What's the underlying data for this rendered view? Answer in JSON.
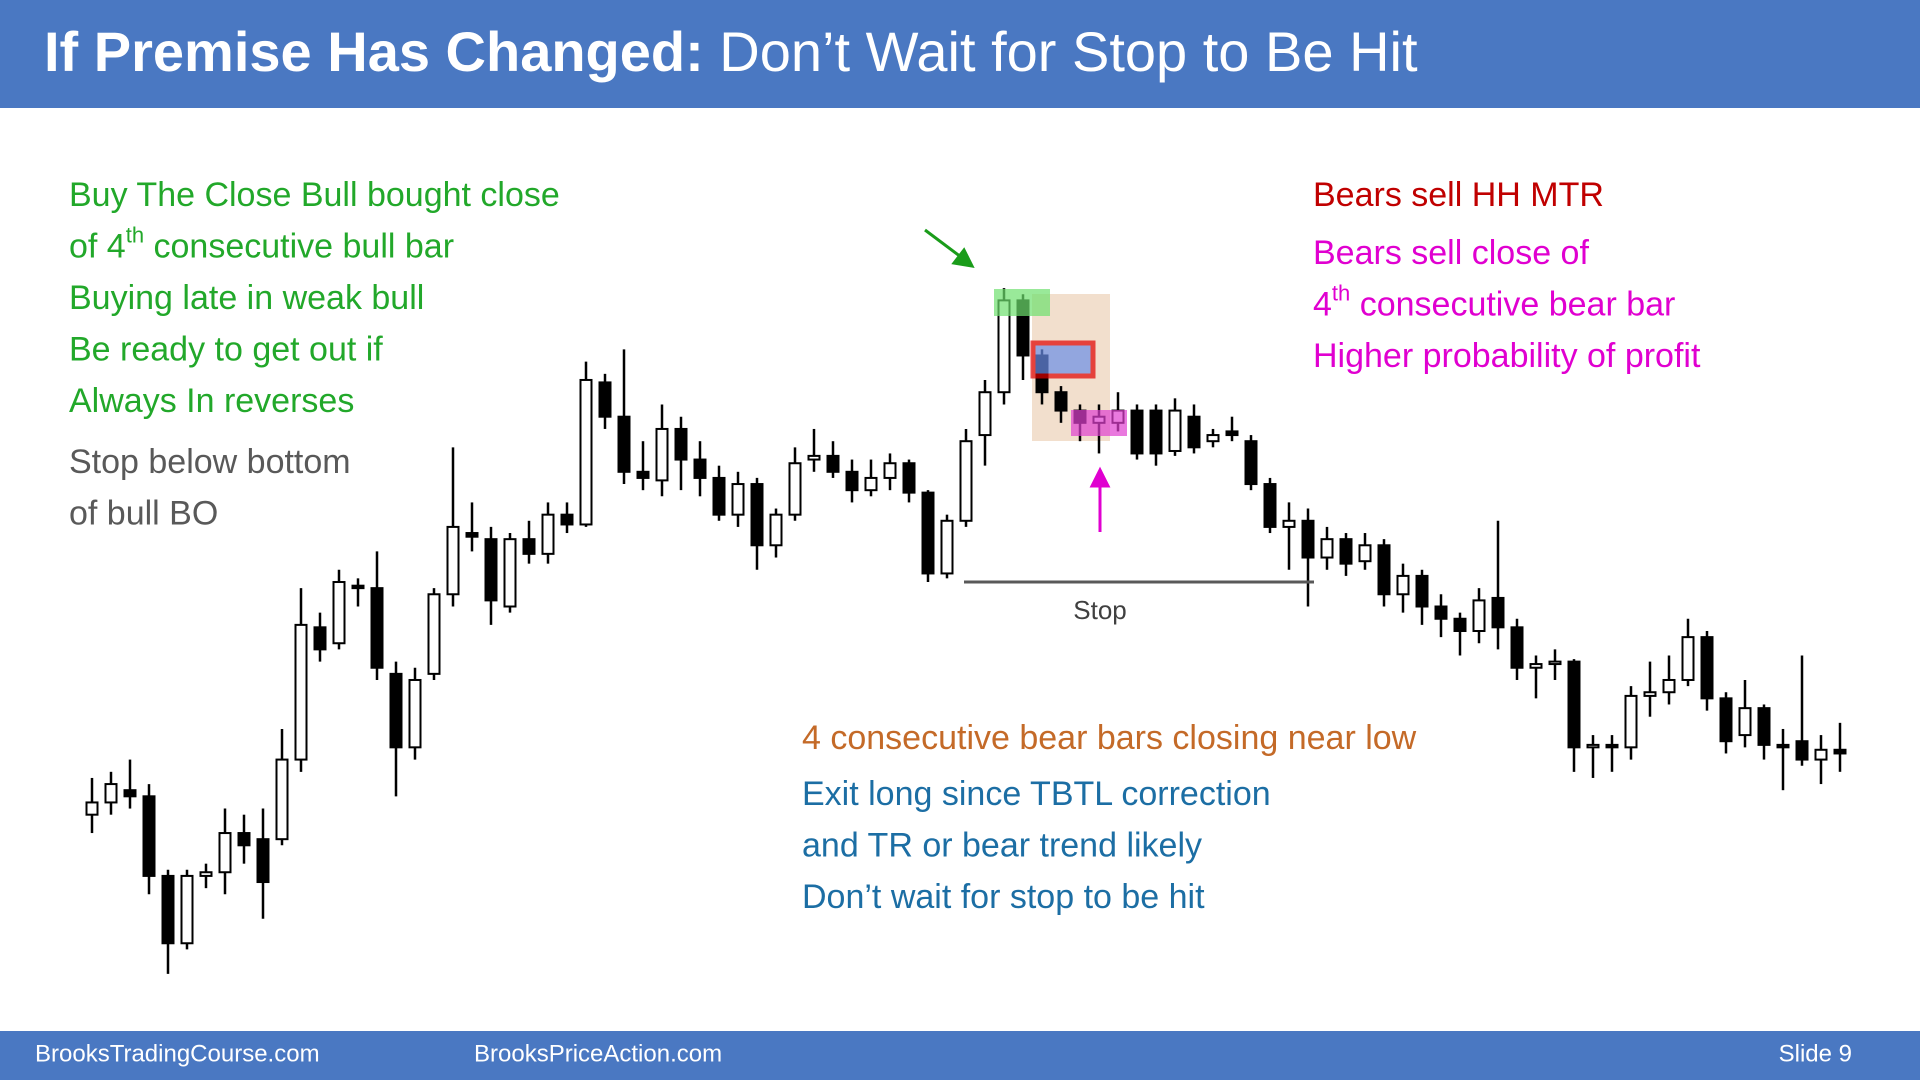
{
  "title": {
    "bold": "If Premise Has Changed:",
    "rest": " Don’t Wait for Stop to Be Hit"
  },
  "notes": {
    "left": [
      "Buy The Close Bull bought close",
      {
        "pre": "of 4",
        "sup": "th",
        "post": " consecutive bull bar"
      },
      "Buying late in weak bull",
      "Be ready to get out if",
      "Always In reverses"
    ],
    "stop_note": [
      "Stop below bottom",
      "of bull BO"
    ],
    "bears_red": "Bears sell HH MTR",
    "bears_magenta": [
      "Bears sell close of",
      {
        "pre": "4",
        "sup": "th",
        "post": " consecutive bear bar"
      },
      "Higher probability of profit"
    ],
    "bear_bars": "4 consecutive bear bars closing near low",
    "exit": [
      "Exit long since TBTL correction",
      "and TR or bear trend likely",
      "Don’t wait for stop to be hit"
    ]
  },
  "footer": {
    "left": "BrooksTradingCourse.com",
    "middle": "BrooksPriceAction.com",
    "slide": "Slide  9"
  },
  "chart_data": {
    "type": "candlestick",
    "ylim": [
      0,
      570
    ],
    "stop": {
      "label": "Stop",
      "value": 325
    },
    "open": [
      135,
      145,
      155,
      150,
      85,
      30,
      85,
      88,
      120,
      115,
      115,
      180,
      288,
      275,
      322,
      320,
      250,
      190,
      250,
      315,
      365,
      360,
      305,
      360,
      348,
      380,
      372,
      488,
      460,
      415,
      408,
      450,
      425,
      410,
      380,
      405,
      355,
      380,
      425,
      428,
      415,
      400,
      410,
      422,
      398,
      332,
      375,
      445,
      480,
      555,
      510,
      480,
      465,
      455,
      455,
      465,
      465,
      432,
      460,
      440,
      448,
      440,
      405,
      370,
      375,
      345,
      360,
      342,
      355,
      315,
      330,
      305,
      295,
      285,
      312,
      288,
      255,
      258,
      260,
      190,
      192,
      190,
      232,
      235,
      245,
      280,
      230,
      200,
      222,
      192,
      195,
      180,
      188
    ],
    "high": [
      165,
      170,
      180,
      160,
      90,
      90,
      95,
      140,
      135,
      140,
      205,
      320,
      300,
      335,
      328,
      350,
      260,
      255,
      320,
      435,
      390,
      370,
      365,
      375,
      390,
      390,
      505,
      495,
      515,
      440,
      470,
      460,
      440,
      420,
      415,
      410,
      385,
      435,
      450,
      440,
      425,
      425,
      430,
      425,
      400,
      380,
      450,
      490,
      565,
      560,
      515,
      485,
      470,
      470,
      480,
      470,
      470,
      475,
      470,
      450,
      460,
      445,
      410,
      390,
      385,
      370,
      365,
      365,
      360,
      340,
      335,
      315,
      300,
      320,
      375,
      295,
      265,
      270,
      262,
      200,
      200,
      240,
      260,
      265,
      295,
      285,
      235,
      245,
      225,
      205,
      265,
      200,
      210
    ],
    "low": [
      120,
      135,
      140,
      70,
      5,
      25,
      75,
      70,
      95,
      50,
      110,
      170,
      260,
      270,
      305,
      245,
      150,
      180,
      245,
      305,
      350,
      290,
      300,
      340,
      340,
      365,
      370,
      450,
      405,
      400,
      395,
      400,
      395,
      375,
      370,
      335,
      345,
      375,
      415,
      410,
      390,
      395,
      400,
      390,
      325,
      328,
      370,
      420,
      470,
      490,
      470,
      455,
      440,
      430,
      448,
      425,
      420,
      428,
      430,
      435,
      440,
      400,
      365,
      335,
      305,
      335,
      330,
      335,
      305,
      300,
      290,
      280,
      265,
      275,
      270,
      245,
      230,
      245,
      170,
      165,
      170,
      180,
      215,
      225,
      240,
      220,
      185,
      190,
      180,
      155,
      175,
      160,
      170
    ],
    "close": [
      145,
      160,
      150,
      85,
      30,
      85,
      88,
      120,
      110,
      80,
      180,
      290,
      270,
      325,
      320,
      255,
      190,
      245,
      315,
      370,
      362,
      310,
      360,
      348,
      380,
      372,
      490,
      460,
      415,
      410,
      450,
      425,
      410,
      380,
      405,
      355,
      380,
      422,
      428,
      415,
      400,
      410,
      422,
      398,
      332,
      375,
      440,
      480,
      555,
      510,
      480,
      465,
      455,
      460,
      465,
      430,
      430,
      465,
      435,
      445,
      445,
      405,
      370,
      375,
      345,
      360,
      340,
      355,
      315,
      330,
      305,
      295,
      285,
      310,
      288,
      255,
      258,
      260,
      190,
      192,
      190,
      232,
      235,
      245,
      280,
      230,
      195,
      222,
      192,
      190,
      180,
      188,
      185
    ]
  }
}
